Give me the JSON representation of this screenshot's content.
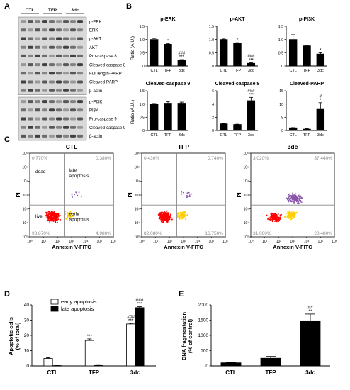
{
  "panel_letters": [
    "A",
    "B",
    "C",
    "D",
    "E"
  ],
  "colors": {
    "axis": "#000000",
    "bar_black": "#000000",
    "bar_white": "#ffffff",
    "blot_bg": "#d9d9d9",
    "band": "#222222",
    "facs_red": "#ff0000",
    "facs_yellow": "#ffd000",
    "facs_purple": "#8855aa",
    "gate": "#888888",
    "quad_text": "#888888"
  },
  "panel_a": {
    "groups": [
      "CTL",
      "TFP",
      "3dc"
    ],
    "block1_labels": [
      "p-ERK",
      "ERK",
      "p-AKT",
      "AKT",
      "Pro-caspase 8",
      "Cleaved-caspase 8",
      "Full length-PARP",
      "Cleaved-PARP",
      "β-actin"
    ],
    "block2_labels": [
      "p-PI3K",
      "PI3K",
      "Pro-caspase 9",
      "Cleaved-caspase 9",
      "β-actin"
    ]
  },
  "panel_b": {
    "ylabel": "Ratio (A.U.)",
    "categories": [
      "CTL",
      "TFP",
      "3dc"
    ]
  },
  "panel_c": {
    "xlabel": "Annexin V-FITC",
    "ylabel": "PI",
    "quadrant_labels": {
      "ul": "dead",
      "ur": "late\napoptosis",
      "ll": "live",
      "lr": "early\napoptosis"
    },
    "tick_labels": [
      "10⁰",
      "10¹",
      "10²",
      "10³",
      "10⁴",
      "10⁵",
      "10⁶"
    ],
    "plots": [
      {
        "title": "CTL",
        "ul": "0.770%",
        "ur": "0.380%",
        "ll": "93.870%",
        "lr": "4.980%"
      },
      {
        "title": "TFP",
        "ul": "0.430%",
        "ur": "0.740%",
        "ll": "82.080%",
        "lr": "16.750%"
      },
      {
        "title": "3dc",
        "ul": "3.020%",
        "ur": "37.440%",
        "ll": "31.060%",
        "lr": "28.480%"
      }
    ]
  },
  "chart_data": [
    {
      "id": "b1",
      "type": "bar",
      "title": "p-ERK",
      "categories": [
        "CTL",
        "TFP",
        "3dc"
      ],
      "values": [
        1.0,
        0.82,
        0.22
      ],
      "errors": [
        0.04,
        0.03,
        0.02
      ],
      "ylim": [
        0,
        1.5
      ],
      "yticks": [
        0,
        0.5,
        1.0,
        1.5
      ],
      "annotations": [
        [],
        [
          "*"
        ],
        [
          "###",
          "***"
        ]
      ]
    },
    {
      "id": "b2",
      "type": "bar",
      "title": "p-AKT",
      "categories": [
        "CTL",
        "TFP",
        "3dc"
      ],
      "values": [
        1.0,
        0.85,
        0.1
      ],
      "errors": [
        0.02,
        0.03,
        0.02
      ],
      "ylim": [
        0,
        1.5
      ],
      "yticks": [
        0,
        0.5,
        1.0,
        1.5
      ],
      "annotations": [
        [],
        [
          "*"
        ],
        [
          "###",
          "***"
        ]
      ]
    },
    {
      "id": "b3",
      "type": "bar",
      "title": "p-PI3K",
      "categories": [
        "CTL",
        "TFP",
        "3dc"
      ],
      "values": [
        1.0,
        0.76,
        0.45
      ],
      "errors": [
        0.18,
        0.02,
        0.05
      ],
      "ylim": [
        0,
        1.5
      ],
      "yticks": [
        0,
        0.5,
        1.0,
        1.5
      ],
      "annotations": [
        [],
        [],
        [
          "*"
        ]
      ]
    },
    {
      "id": "b4",
      "type": "bar",
      "title": "Cleaved-caspase 9",
      "categories": [
        "CTL",
        "TFP",
        "3dc"
      ],
      "values": [
        1.0,
        1.03,
        1.03
      ],
      "errors": [
        0.02,
        0.06,
        0.04
      ],
      "ylim": [
        0,
        1.5
      ],
      "yticks": [
        0,
        0.5,
        1.0,
        1.5
      ],
      "annotations": [
        [],
        [],
        []
      ]
    },
    {
      "id": "b5",
      "type": "bar",
      "title": "Cleaved-caspase 8",
      "categories": [
        "CTL",
        "TFP",
        "3dc"
      ],
      "values": [
        1.0,
        0.9,
        4.5
      ],
      "errors": [
        0.05,
        0.05,
        0.5
      ],
      "ylim": [
        0,
        6
      ],
      "yticks": [
        0,
        2,
        4,
        6
      ],
      "annotations": [
        [],
        [],
        [
          "###",
          "***"
        ]
      ]
    },
    {
      "id": "b6",
      "type": "bar",
      "title": "Cleaved-PARP",
      "categories": [
        "CTL",
        "TFP",
        "3dc"
      ],
      "values": [
        1.0,
        0.5,
        8.0
      ],
      "errors": [
        0.1,
        0.2,
        2.5
      ],
      "ylim": [
        0,
        15
      ],
      "yticks": [
        0,
        5,
        10,
        15
      ],
      "annotations": [
        [],
        [],
        [
          "#",
          "*"
        ]
      ]
    },
    {
      "id": "d",
      "type": "bar",
      "title": "",
      "ylabel": "Apoptotic cells\n(% of total)",
      "categories": [
        "CTL",
        "TFP",
        "3dc"
      ],
      "ylim": [
        0,
        40
      ],
      "yticks": [
        0,
        10,
        20,
        30,
        40
      ],
      "series": [
        {
          "name": "early apoptosis",
          "values": [
            4.9,
            16.7,
            27.5
          ],
          "errors": [
            0.5,
            1.0,
            0.5
          ],
          "annotations": [
            [],
            [
              "***"
            ],
            [
              "###",
              "***"
            ]
          ]
        },
        {
          "name": "late apoptosis",
          "values": [
            0.2,
            0.3,
            38.2
          ],
          "errors": [
            0.05,
            0.05,
            0.6
          ],
          "annotations": [
            [],
            [],
            [
              "###",
              "***"
            ]
          ]
        }
      ]
    },
    {
      "id": "e",
      "type": "bar",
      "title": "",
      "ylabel": "DNA fragmentation\n(% of control)",
      "categories": [
        "CTL",
        "TFP",
        "3dc"
      ],
      "values": [
        100,
        250,
        1480
      ],
      "errors": [
        10,
        60,
        220
      ],
      "ylim": [
        0,
        2000
      ],
      "yticks": [
        0,
        500,
        1000,
        1500,
        2000
      ],
      "annotations": [
        [],
        [],
        [
          "##",
          "**"
        ]
      ]
    }
  ]
}
